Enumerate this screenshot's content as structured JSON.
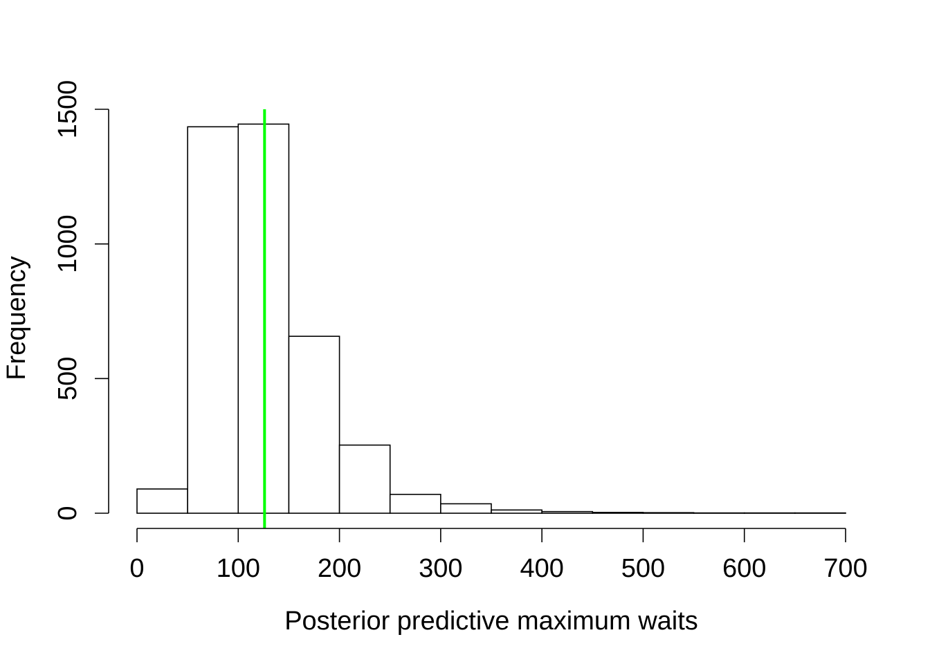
{
  "chart_data": {
    "type": "bar",
    "subtype": "histogram",
    "bin_edges": [
      0,
      50,
      100,
      150,
      200,
      250,
      300,
      350,
      400,
      450,
      500,
      550,
      600,
      650,
      700
    ],
    "values": [
      90,
      1435,
      1445,
      657,
      253,
      70,
      35,
      12,
      6,
      3,
      2,
      1,
      1,
      1
    ],
    "xlabel": "Posterior predictive maximum waits",
    "ylabel": "Frequency",
    "xlim": [
      0,
      700
    ],
    "ylim": [
      0,
      1500
    ],
    "x_ticks": [
      0,
      100,
      200,
      300,
      400,
      500,
      600,
      700
    ],
    "y_ticks": [
      0,
      500,
      1000,
      1500
    ],
    "reference_line": {
      "x": 126,
      "color": "#00ff00",
      "y_range": [
        0,
        1500
      ]
    },
    "bar_fill": "#ffffff",
    "bar_stroke": "#000000",
    "grid": false,
    "legend": "none"
  }
}
